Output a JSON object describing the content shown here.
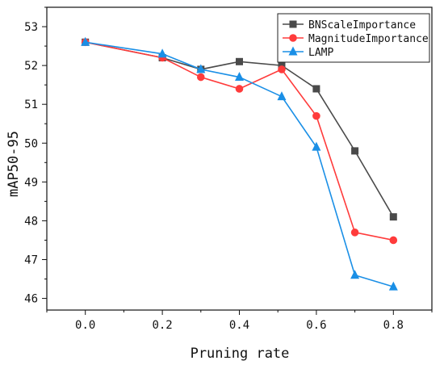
{
  "chart_data": {
    "type": "line",
    "title": "",
    "xlabel": "Pruning rate",
    "ylabel": "mAP50-95",
    "xlim": [
      -0.1,
      0.9
    ],
    "ylim": [
      45.7,
      53.5
    ],
    "xticks": [
      0.0,
      0.2,
      0.4,
      0.6,
      0.8
    ],
    "xtick_labels": [
      "0.0",
      "0.2",
      "0.4",
      "0.6",
      "0.8"
    ],
    "yticks": [
      46,
      47,
      48,
      49,
      50,
      51,
      52,
      53
    ],
    "ytick_labels": [
      "46",
      "47",
      "48",
      "49",
      "50",
      "51",
      "52",
      "53"
    ],
    "grid": false,
    "legend_position": "top-right",
    "series": [
      {
        "name": "BNScaleImportance",
        "color": "#4a4a4a",
        "marker": "square",
        "x": [
          0.0,
          0.2,
          0.3,
          0.4,
          0.51,
          0.6,
          0.7,
          0.8
        ],
        "values": [
          52.6,
          52.2,
          51.9,
          52.1,
          52.0,
          51.4,
          49.8,
          48.1
        ]
      },
      {
        "name": "MagnitudeImportance",
        "color": "#ff3b3b",
        "marker": "circle",
        "x": [
          0.0,
          0.2,
          0.3,
          0.4,
          0.51,
          0.6,
          0.7,
          0.8
        ],
        "values": [
          52.6,
          52.2,
          51.7,
          51.4,
          51.9,
          50.7,
          47.7,
          47.5
        ]
      },
      {
        "name": "LAMP",
        "color": "#1a8fe6",
        "marker": "triangle",
        "x": [
          0.0,
          0.2,
          0.3,
          0.4,
          0.51,
          0.6,
          0.7,
          0.8
        ],
        "values": [
          52.6,
          52.3,
          51.9,
          51.7,
          51.2,
          49.9,
          46.6,
          46.3
        ]
      }
    ]
  }
}
